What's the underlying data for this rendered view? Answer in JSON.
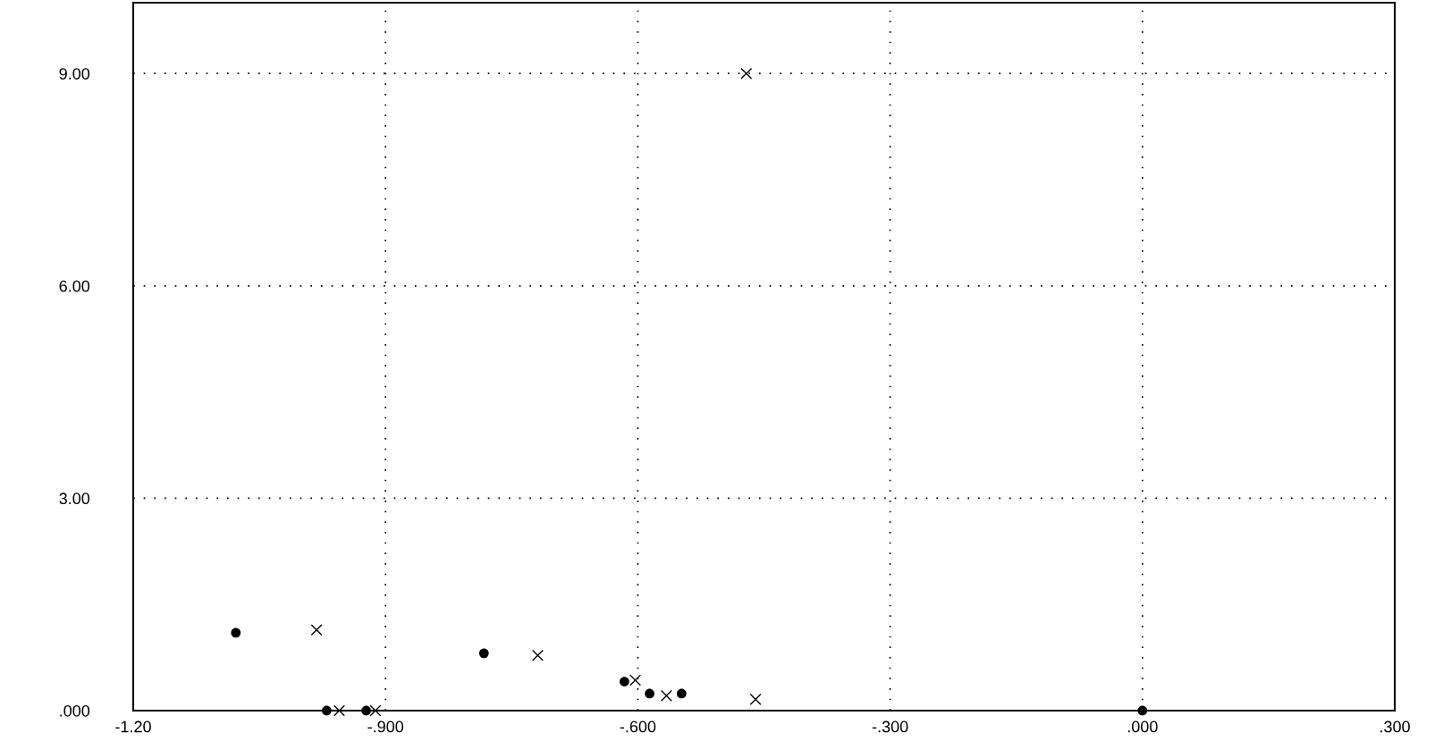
{
  "chart_data": {
    "type": "scatter",
    "xlim": [
      -1.2,
      0.3
    ],
    "ylim": [
      0,
      10
    ],
    "xticks": [
      {
        "value": -1.2,
        "label": "-1.20"
      },
      {
        "value": -0.9,
        "label": "-.900"
      },
      {
        "value": -0.6,
        "label": "-.600"
      },
      {
        "value": -0.3,
        "label": "-.300"
      },
      {
        "value": 0,
        "label": ".000"
      },
      {
        "value": 0.3,
        "label": ".300"
      }
    ],
    "yticks": [
      {
        "value": 0,
        "label": ".000"
      },
      {
        "value": 3,
        "label": "3.00"
      },
      {
        "value": 6,
        "label": "6.00"
      },
      {
        "value": 9,
        "label": "9.00"
      }
    ],
    "grid": true,
    "series": [
      {
        "color": "#000000",
        "marker": "circle",
        "x": [
          -1.078,
          -0.97,
          -0.923,
          -0.783,
          -0.616,
          -0.586,
          -0.548,
          0.0
        ],
        "values": [
          1.1,
          0.0,
          0.0,
          0.81,
          0.41,
          0.24,
          0.24,
          0.0
        ]
      },
      {
        "color": "#000000",
        "marker": "cross",
        "x": [
          -0.982,
          -0.955,
          -0.912,
          -0.719,
          -0.603,
          -0.566,
          -0.46,
          -0.471
        ],
        "values": [
          1.14,
          0.0,
          0.0,
          0.78,
          0.43,
          0.21,
          0.16,
          9.0
        ]
      }
    ]
  }
}
